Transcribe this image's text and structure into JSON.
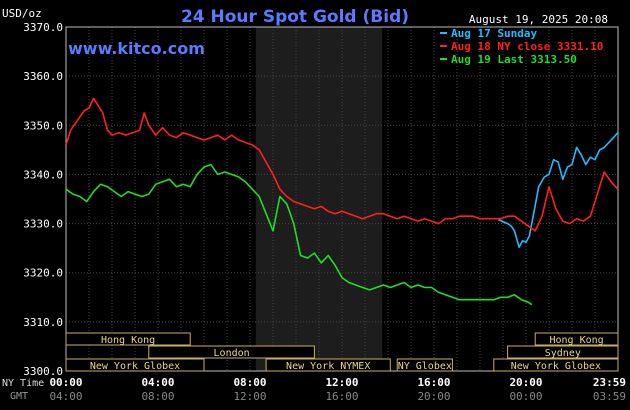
{
  "header": {
    "title": "24 Hour Spot Gold (Bid)",
    "datetime": "August 19, 2025 20:08",
    "site": "www.kitco.com",
    "unit": "USD/oz"
  },
  "legend": [
    {
      "label": "Aug 17 Sunday",
      "color": "#22bbff"
    },
    {
      "label": "Aug 18 NY close 3331.10",
      "color": "#ff2020"
    },
    {
      "label": "Aug 19 Last 3313.50",
      "color": "#22dd22"
    }
  ],
  "sessions": [
    {
      "label": "Hong Kong",
      "row": 0,
      "start": 0,
      "end": 9
    },
    {
      "label": "London",
      "row": 1,
      "start": 6,
      "end": 18
    },
    {
      "label": "New York Globex",
      "row": 2,
      "start": 0,
      "end": 10
    },
    {
      "label": "New York NYMEX",
      "row": 2,
      "start": 14.5,
      "end": 23.5
    },
    {
      "label": "NY Globex",
      "row": 2,
      "start": 24,
      "end": 28
    },
    {
      "label": "Hong Kong",
      "row": 0,
      "start": 34,
      "end": 40
    },
    {
      "label": "Sydney",
      "row": 1,
      "start": 32,
      "end": 40
    },
    {
      "label": "New York Globex",
      "row": 2,
      "start": 31,
      "end": 40
    }
  ],
  "footer": {
    "row1_label": "NY Time",
    "row2_label": "GMT",
    "row1_ticks": [
      "00:00",
      "04:00",
      "08:00",
      "12:00",
      "16:00",
      "20:00",
      "23:59"
    ],
    "row2_ticks": [
      "04:00",
      "08:00",
      "12:00",
      "16:00",
      "20:00",
      "00:00",
      "03:59"
    ]
  },
  "chart_data": {
    "type": "line",
    "title": "24 Hour Spot Gold (Bid)",
    "ylabel": "USD/oz",
    "ylim": [
      3300,
      3370
    ],
    "xlim": [
      0,
      24
    ],
    "x_unit": "hours, NY time",
    "yticks": [
      "3300.0",
      "3310.0",
      "3320.0",
      "3330.0",
      "3340.0",
      "3350.0",
      "3360.0",
      "3370.0"
    ],
    "xticks": [
      "00:00",
      "04:00",
      "08:00",
      "12:00",
      "16:00",
      "20:00",
      "23:59"
    ],
    "grid": true,
    "shaded_region": [
      8.25,
      13.75
    ],
    "series": [
      {
        "name": "Aug 17 Sunday",
        "color": "#22bbff",
        "x": [
          18.8,
          19.2,
          19.35,
          19.5,
          19.7,
          19.85,
          20.0,
          20.15,
          20.35,
          20.55,
          20.8,
          21.0,
          21.2,
          21.4,
          21.6,
          21.8,
          22.0,
          22.2,
          22.4,
          22.6,
          22.8,
          23.0,
          23.2,
          23.4,
          23.6,
          23.8,
          23.99
        ],
        "y": [
          3330.8,
          3330.0,
          3329.5,
          3328.5,
          3325.2,
          3326.5,
          3326.2,
          3327.5,
          3332.5,
          3337.5,
          3339.5,
          3340.0,
          3343.0,
          3342.5,
          3339.0,
          3341.5,
          3342.0,
          3345.5,
          3344.0,
          3342.0,
          3343.5,
          3343.0,
          3345.0,
          3345.5,
          3346.5,
          3347.5,
          3348.5
        ]
      },
      {
        "name": "Aug 18 NY close 3331.10",
        "color": "#ff2020",
        "x": [
          0,
          0.2,
          0.5,
          0.8,
          1.0,
          1.2,
          1.4,
          1.6,
          1.8,
          2.0,
          2.3,
          2.6,
          2.9,
          3.2,
          3.4,
          3.6,
          3.9,
          4.2,
          4.5,
          4.8,
          5.1,
          5.4,
          5.7,
          6.0,
          6.3,
          6.6,
          6.9,
          7.2,
          7.5,
          7.8,
          8.1,
          8.4,
          8.7,
          9.0,
          9.3,
          9.6,
          9.9,
          10.2,
          10.5,
          10.8,
          11.1,
          11.4,
          11.7,
          12.0,
          12.3,
          12.6,
          12.9,
          13.2,
          13.5,
          13.8,
          14.1,
          14.4,
          14.7,
          15.0,
          15.3,
          15.6,
          15.9,
          16.2,
          16.5,
          16.8,
          17.1,
          17.4,
          17.7,
          18.0,
          18.3,
          18.6,
          18.9,
          19.2,
          19.5,
          19.8,
          20.1,
          20.4,
          20.7,
          21.0,
          21.3,
          21.6,
          21.9,
          22.2,
          22.5,
          22.8,
          23.1,
          23.4,
          23.7,
          23.99
        ],
        "y": [
          3346.0,
          3349.0,
          3351.0,
          3353.0,
          3353.5,
          3355.5,
          3354.0,
          3352.5,
          3349.0,
          3348.0,
          3348.5,
          3348.0,
          3348.5,
          3349.0,
          3352.5,
          3350.0,
          3348.0,
          3349.5,
          3348.0,
          3347.5,
          3348.5,
          3348.0,
          3347.5,
          3347.0,
          3347.5,
          3348.0,
          3347.0,
          3348.0,
          3347.0,
          3346.5,
          3346.0,
          3345.0,
          3342.5,
          3340.0,
          3337.0,
          3335.5,
          3334.5,
          3334.0,
          3333.5,
          3333.0,
          3333.5,
          3332.5,
          3332.0,
          3332.5,
          3332.0,
          3331.5,
          3331.0,
          3331.5,
          3332.0,
          3332.0,
          3331.5,
          3331.0,
          3331.5,
          3331.0,
          3330.5,
          3331.0,
          3330.5,
          3330.0,
          3331.0,
          3331.0,
          3331.5,
          3331.5,
          3331.5,
          3331.0,
          3331.0,
          3331.0,
          3331.0,
          3331.5,
          3331.5,
          3330.5,
          3329.5,
          3328.5,
          3331.5,
          3337.5,
          3333.0,
          3330.5,
          3330.0,
          3331.0,
          3330.5,
          3331.5,
          3336.0,
          3340.5,
          3338.5,
          3337.0
        ]
      },
      {
        "name": "Aug 19 Last 3313.50",
        "color": "#22dd22",
        "x": [
          0,
          0.3,
          0.6,
          0.9,
          1.2,
          1.5,
          1.8,
          2.1,
          2.4,
          2.7,
          3.0,
          3.3,
          3.6,
          3.9,
          4.2,
          4.5,
          4.8,
          5.1,
          5.4,
          5.7,
          6.0,
          6.3,
          6.6,
          6.9,
          7.2,
          7.5,
          7.8,
          8.1,
          8.4,
          8.7,
          9.0,
          9.3,
          9.6,
          9.9,
          10.2,
          10.5,
          10.8,
          11.1,
          11.4,
          11.7,
          12.0,
          12.3,
          12.6,
          12.9,
          13.2,
          13.5,
          13.8,
          14.1,
          14.4,
          14.7,
          15.0,
          15.3,
          15.6,
          15.9,
          16.2,
          16.5,
          16.8,
          17.1,
          17.4,
          17.7,
          18.0,
          18.3,
          18.6,
          18.9,
          19.2,
          19.5,
          19.8,
          20.1,
          20.25
        ],
        "y": [
          3337.0,
          3336.0,
          3335.5,
          3334.5,
          3336.5,
          3338.0,
          3337.5,
          3336.5,
          3335.5,
          3336.5,
          3336.0,
          3335.5,
          3336.0,
          3338.0,
          3338.5,
          3339.0,
          3337.5,
          3338.0,
          3337.5,
          3340.0,
          3341.5,
          3342.0,
          3340.0,
          3340.5,
          3340.0,
          3339.5,
          3338.5,
          3337.0,
          3335.5,
          3332.0,
          3328.5,
          3335.5,
          3334.0,
          3330.0,
          3323.5,
          3323.0,
          3324.0,
          3322.0,
          3323.5,
          3321.5,
          3319.0,
          3318.0,
          3317.5,
          3317.0,
          3316.5,
          3317.0,
          3317.5,
          3317.0,
          3317.5,
          3318.0,
          3317.0,
          3317.5,
          3317.0,
          3317.0,
          3316.0,
          3315.5,
          3315.0,
          3314.5,
          3314.5,
          3314.5,
          3314.5,
          3314.5,
          3314.5,
          3315.0,
          3315.0,
          3315.5,
          3314.5,
          3314.0,
          3313.5
        ]
      }
    ]
  }
}
